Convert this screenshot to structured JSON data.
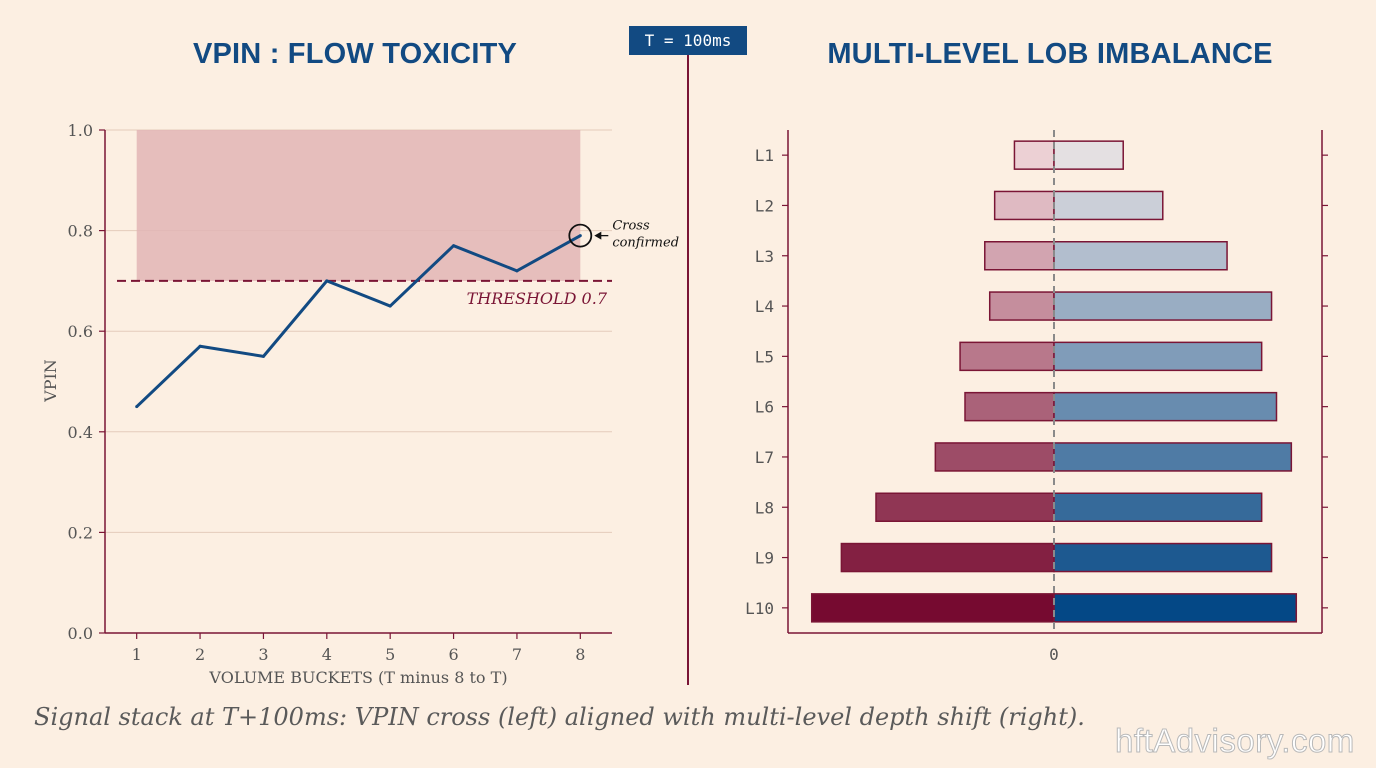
{
  "left_title": "VPIN : FLOW TOXICITY",
  "right_title": "MULTI-LEVEL LOB IMBALANCE",
  "time_label": "T = 100ms",
  "caption": "Signal stack at T+100ms: VPIN cross (left) aligned with multi-level depth shift (right).",
  "watermark": "hftAdvisory.com",
  "colors": {
    "accent_blue": "#124a82",
    "accent_red": "#7a1535",
    "background": "#fcefe2",
    "toxic_zone": "#e2b5b5"
  },
  "chart_data": [
    {
      "type": "line",
      "title": "VPIN : FLOW TOXICITY",
      "xlabel": "VOLUME BUCKETS (T minus 8 to T)",
      "ylabel": "VPIN",
      "x": [
        1,
        2,
        3,
        4,
        5,
        6,
        7,
        8
      ],
      "y": [
        0.45,
        0.57,
        0.55,
        0.7,
        0.65,
        0.77,
        0.72,
        0.79
      ],
      "xticks": [
        "1",
        "2",
        "3",
        "4",
        "5",
        "6",
        "7",
        "8"
      ],
      "yticks": [
        "0.0",
        "0.2",
        "0.4",
        "0.6",
        "0.8",
        "1.0"
      ],
      "ylim": [
        0,
        1.0
      ],
      "xlim": [
        0.5,
        8.5
      ],
      "grid": true,
      "threshold": {
        "value": 0.7,
        "label": "THRESHOLD 0.7"
      },
      "shaded_zone": {
        "x_range": [
          1,
          8
        ],
        "y_range": [
          0.7,
          1.0
        ]
      },
      "annotation": {
        "text_line1": "Cross",
        "text_line2": "confirmed",
        "x": 8,
        "y": 0.79
      }
    },
    {
      "type": "bar",
      "title": "MULTI-LEVEL LOB IMBALANCE",
      "categories": [
        "L1",
        "L2",
        "L3",
        "L4",
        "L5",
        "L6",
        "L7",
        "L8",
        "L9",
        "L10"
      ],
      "series": [
        {
          "values": [
            -0.8,
            -1.2,
            -1.4,
            -1.3,
            -1.9,
            -1.8,
            -2.4,
            -3.6,
            -4.3,
            -4.9
          ]
        },
        {
          "values": [
            1.4,
            2.2,
            3.5,
            4.4,
            4.2,
            4.5,
            4.8,
            4.2,
            4.4,
            4.9
          ]
        }
      ],
      "xlim": [
        -5.4,
        5.4
      ],
      "xticks": [
        "0"
      ],
      "zero_line": "dashed"
    }
  ]
}
